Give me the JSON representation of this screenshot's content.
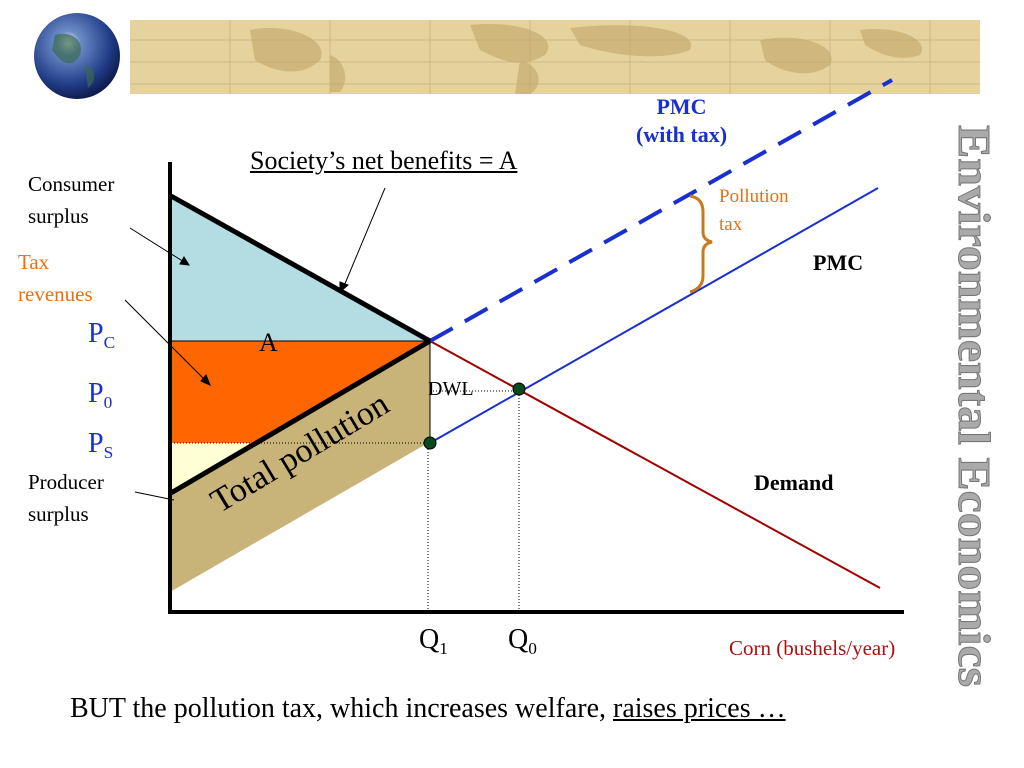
{
  "slide": {
    "caption_text": "BUT the pollution tax, which increases welfare, ",
    "caption_link": "raises prices …",
    "side_title": "Environmental Economics"
  },
  "labels": {
    "society": "Society’s net benefits = A",
    "consumer_surplus": [
      "Consumer",
      "surplus"
    ],
    "tax_revenues": [
      "Tax",
      "revenues"
    ],
    "producer_surplus": [
      "Producer",
      "surplus"
    ],
    "p_c": {
      "base": "P",
      "sub": "C"
    },
    "p_0": {
      "base": "P",
      "sub": "0"
    },
    "p_s": {
      "base": "P",
      "sub": "S"
    },
    "q_1": {
      "base": "Q",
      "sub": "1"
    },
    "q_0": {
      "base": "Q",
      "sub": "0"
    },
    "area_a": "A",
    "dwl": "DWL",
    "total_pollution": "Total pollution",
    "pmc_tax": [
      "PMC",
      "(with tax)"
    ],
    "pollution_tax": [
      "Pollution",
      "tax"
    ],
    "pmc": "PMC",
    "demand": "Demand",
    "x_axis": "Corn (bushels/year)"
  },
  "colors": {
    "consumer_surplus": "#b4dde3",
    "tax_revenue": "#ff6600",
    "producer_surplus": "#ffffd5",
    "pollution": "#c8b478",
    "pmc_line": "#1a2fd0",
    "demand_line": "#a00000",
    "brace": "#c87a1e",
    "side_title": "#aaaaaa"
  }
}
